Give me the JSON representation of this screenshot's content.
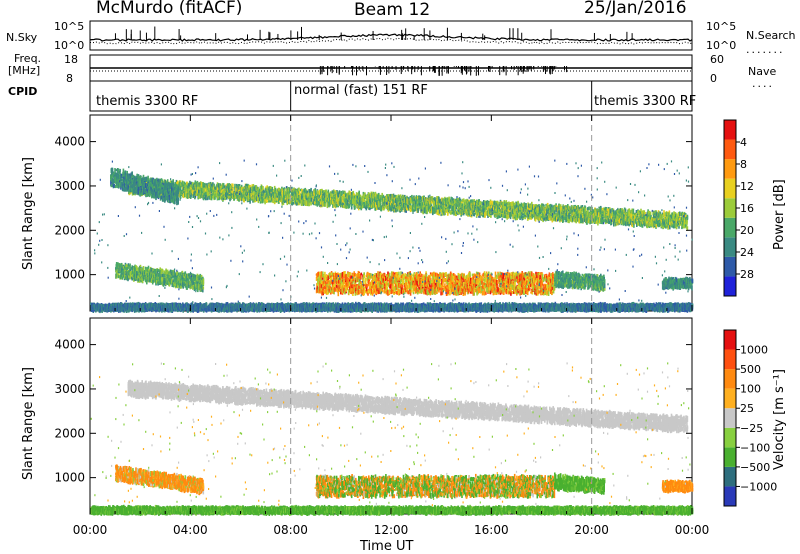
{
  "header": {
    "station": "McMurdo (fitACF)",
    "beam": "Beam 12",
    "date": "25/Jan/2016"
  },
  "summary_panel": {
    "nsky_label": "N.Sky",
    "nsky_ticks": [
      "10^5",
      "10^0"
    ],
    "nsearch_label": "N.Search",
    "nsearch_ticks": [
      "10^5",
      "10^0"
    ],
    "freq_label": "Freq.",
    "freq_unit": "[MHz]",
    "freq_ticks": [
      "18",
      "8"
    ],
    "nave_label": "Nave",
    "nave_ticks": [
      "60",
      "0"
    ],
    "cpid_label": "CPID",
    "cpid_segments": [
      {
        "label": "themis 3300 RF",
        "start_h": 0,
        "end_h": 8
      },
      {
        "label": "normal (fast) 151 RF",
        "start_h": 8,
        "end_h": 20
      },
      {
        "label": "themis 3300 RF",
        "start_h": 20,
        "end_h": 24
      }
    ]
  },
  "colors": {
    "power": [
      "#1f22d9",
      "#2e5aa8",
      "#3a8a82",
      "#4aa868",
      "#9ccc3a",
      "#e8d020",
      "#ff9a10",
      "#ff5a10",
      "#e51010"
    ],
    "velocity": [
      "#e51010",
      "#ff5010",
      "#ff8a10",
      "#ffb020",
      "#c8c8c8",
      "#88d040",
      "#4ab030",
      "#2e6e7e",
      "#2a3ab8"
    ]
  },
  "chart_data": [
    {
      "type": "heatmap",
      "title": "",
      "xlabel": "Time UT",
      "ylabel": "Slant Range [km]",
      "xlim": [
        0,
        24
      ],
      "ylim": [
        180,
        4600
      ],
      "x_ticks": [
        "00:00",
        "04:00",
        "08:00",
        "12:00",
        "16:00",
        "20:00",
        "00:00"
      ],
      "x_tick_values": [
        0,
        4,
        8,
        12,
        16,
        20,
        24
      ],
      "y_ticks": [
        "1000",
        "2000",
        "3000",
        "4000"
      ],
      "y_tick_values": [
        1000,
        2000,
        3000,
        4000
      ],
      "colorbar": {
        "label": "Power [dB]",
        "ticks": [
          "4",
          "8",
          "12",
          "16",
          "20",
          "24",
          "28"
        ],
        "range": [
          0,
          30
        ]
      },
      "bands": [
        {
          "t0": 1.5,
          "t1": 23.8,
          "r_start": 3000,
          "r_end": 2200,
          "width": 160,
          "intensity": [
            8,
            18
          ]
        },
        {
          "t0": 0.8,
          "t1": 3.5,
          "r_start": 3200,
          "r_end": 2800,
          "width": 200,
          "intensity": [
            6,
            12
          ]
        },
        {
          "t0": 1.0,
          "t1": 4.5,
          "r_start": 1100,
          "r_end": 800,
          "width": 150,
          "intensity": [
            8,
            16
          ]
        },
        {
          "t0": 9.0,
          "t1": 18.5,
          "r_start": 800,
          "r_end": 800,
          "width": 220,
          "intensity": [
            14,
            28
          ]
        },
        {
          "t0": 18.5,
          "t1": 20.5,
          "r_start": 900,
          "r_end": 800,
          "width": 150,
          "intensity": [
            8,
            14
          ]
        },
        {
          "t0": 22.8,
          "t1": 24,
          "r_start": 800,
          "r_end": 800,
          "width": 100,
          "intensity": [
            6,
            12
          ]
        },
        {
          "t0": 0,
          "t1": 24,
          "r_start": 260,
          "r_end": 260,
          "width": 60,
          "intensity": [
            4,
            10
          ]
        }
      ]
    },
    {
      "type": "heatmap",
      "title": "",
      "xlabel": "Time UT",
      "ylabel": "Slant Range [km]",
      "xlim": [
        0,
        24
      ],
      "ylim": [
        180,
        4600
      ],
      "x_ticks": [
        "00:00",
        "04:00",
        "08:00",
        "12:00",
        "16:00",
        "20:00",
        "00:00"
      ],
      "x_tick_values": [
        0,
        4,
        8,
        12,
        16,
        20,
        24
      ],
      "y_ticks": [
        "1000",
        "2000",
        "3000",
        "4000"
      ],
      "y_tick_values": [
        1000,
        2000,
        3000,
        4000
      ],
      "colorbar": {
        "label": "Velocity [m s⁻¹]",
        "ticks": [
          "1000",
          "500",
          "100",
          "25",
          "−25",
          "−100",
          "−500",
          "−1000"
        ]
      },
      "bands": [
        {
          "t0": 1.5,
          "t1": 23.8,
          "r_start": 3000,
          "r_end": 2200,
          "width": 160,
          "velocity": [
            -25,
            25
          ]
        },
        {
          "t0": 1.0,
          "t1": 4.5,
          "r_start": 1100,
          "r_end": 800,
          "width": 150,
          "velocity": [
            -500,
            100
          ]
        },
        {
          "t0": 9.0,
          "t1": 18.5,
          "r_start": 800,
          "r_end": 800,
          "width": 220,
          "velocity": [
            -500,
            500
          ]
        },
        {
          "t0": 18.5,
          "t1": 20.5,
          "r_start": 900,
          "r_end": 800,
          "width": 150,
          "velocity": [
            25,
            500
          ]
        },
        {
          "t0": 22.8,
          "t1": 24,
          "r_start": 800,
          "r_end": 800,
          "width": 100,
          "velocity": [
            -500,
            -25
          ]
        },
        {
          "t0": 0,
          "t1": 24,
          "r_start": 260,
          "r_end": 260,
          "width": 60,
          "velocity": [
            25,
            500
          ]
        }
      ]
    }
  ]
}
